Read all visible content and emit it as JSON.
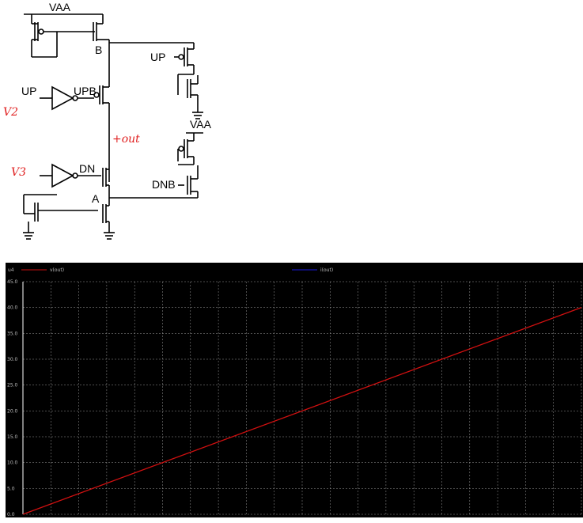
{
  "schematic": {
    "labels": {
      "vaa_top": "VAA",
      "node_b": "B",
      "up_right": "UP",
      "up_left": "UP",
      "upb": "UPB",
      "vaa_right": "VAA",
      "dn": "DN",
      "dnb": "DNB",
      "node_a": "A"
    },
    "annotations": {
      "v2": "V2",
      "out": "+out",
      "v3": "V3"
    },
    "colors": {
      "wire": "#000000",
      "annotation": "#e02020"
    }
  },
  "plot": {
    "colors": {
      "background": "#000000",
      "grid": "#9a9a9a",
      "v_out": "#d01010",
      "i_out": "#1a1ae0"
    }
  },
  "chart_data": {
    "type": "line",
    "title": "",
    "xlabel": "",
    "ylabel": "",
    "ylim": [
      0,
      45
    ],
    "y_ticks": [
      "0.0",
      "5.0",
      "10.0",
      "15.0",
      "20.0",
      "25.0",
      "30.0",
      "35.0",
      "40.0",
      "45.0"
    ],
    "legend_header": "u4",
    "series": [
      {
        "name": "v(out)",
        "x": [
          0,
          1
        ],
        "values": [
          0,
          40
        ]
      },
      {
        "name": "i(out)",
        "x": [],
        "values": []
      }
    ]
  }
}
